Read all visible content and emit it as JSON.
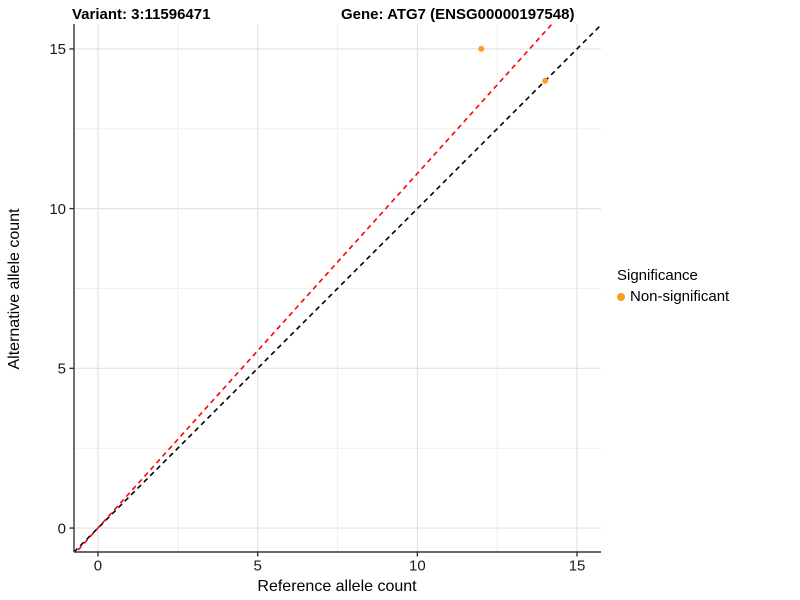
{
  "header": {
    "variant_title": "Variant: 3:11596471",
    "gene_title": "Gene: ATG7 (ENSG00000197548)"
  },
  "axes": {
    "x_label": "Reference allele count",
    "y_label": "Alternative allele count"
  },
  "legend": {
    "title": "Significance",
    "items": [
      {
        "label": "Non-significant",
        "color": "#F9A01B",
        "marker": "circle-icon"
      }
    ]
  },
  "chart_data": {
    "type": "scatter",
    "title_left": "Variant: 3:11596471",
    "title_right": "Gene: ATG7 (ENSG00000197548)",
    "xlabel": "Reference allele count",
    "ylabel": "Alternative allele count",
    "xlim": [
      -0.75,
      15.75
    ],
    "ylim": [
      -0.75,
      15.78
    ],
    "x_ticks": [
      0,
      5,
      10,
      15
    ],
    "y_ticks": [
      0,
      5,
      10,
      15
    ],
    "x_minor_ticks": [
      2.5,
      7.5,
      12.5
    ],
    "y_minor_ticks": [
      2.5,
      7.5,
      12.5
    ],
    "grid": true,
    "legend_position": "right",
    "series": [
      {
        "name": "Non-significant",
        "color": "#F9A01B",
        "points": [
          {
            "x": 12,
            "y": 15
          },
          {
            "x": 14,
            "y": 14
          }
        ]
      }
    ],
    "ablines": [
      {
        "name": "identity-line",
        "slope": 1.0,
        "intercept": 0,
        "color": "#000000",
        "style": "dashed"
      },
      {
        "name": "ratio-line",
        "slope": 1.11,
        "intercept": 0,
        "color": "#FF0000",
        "style": "dashed"
      }
    ],
    "colors": {
      "major_grid": "#E2E2E2",
      "minor_grid": "#EFEFEF",
      "axis_line": "#333333",
      "tick_text": "#1A1A1A",
      "background": "#FFFFFF"
    }
  }
}
